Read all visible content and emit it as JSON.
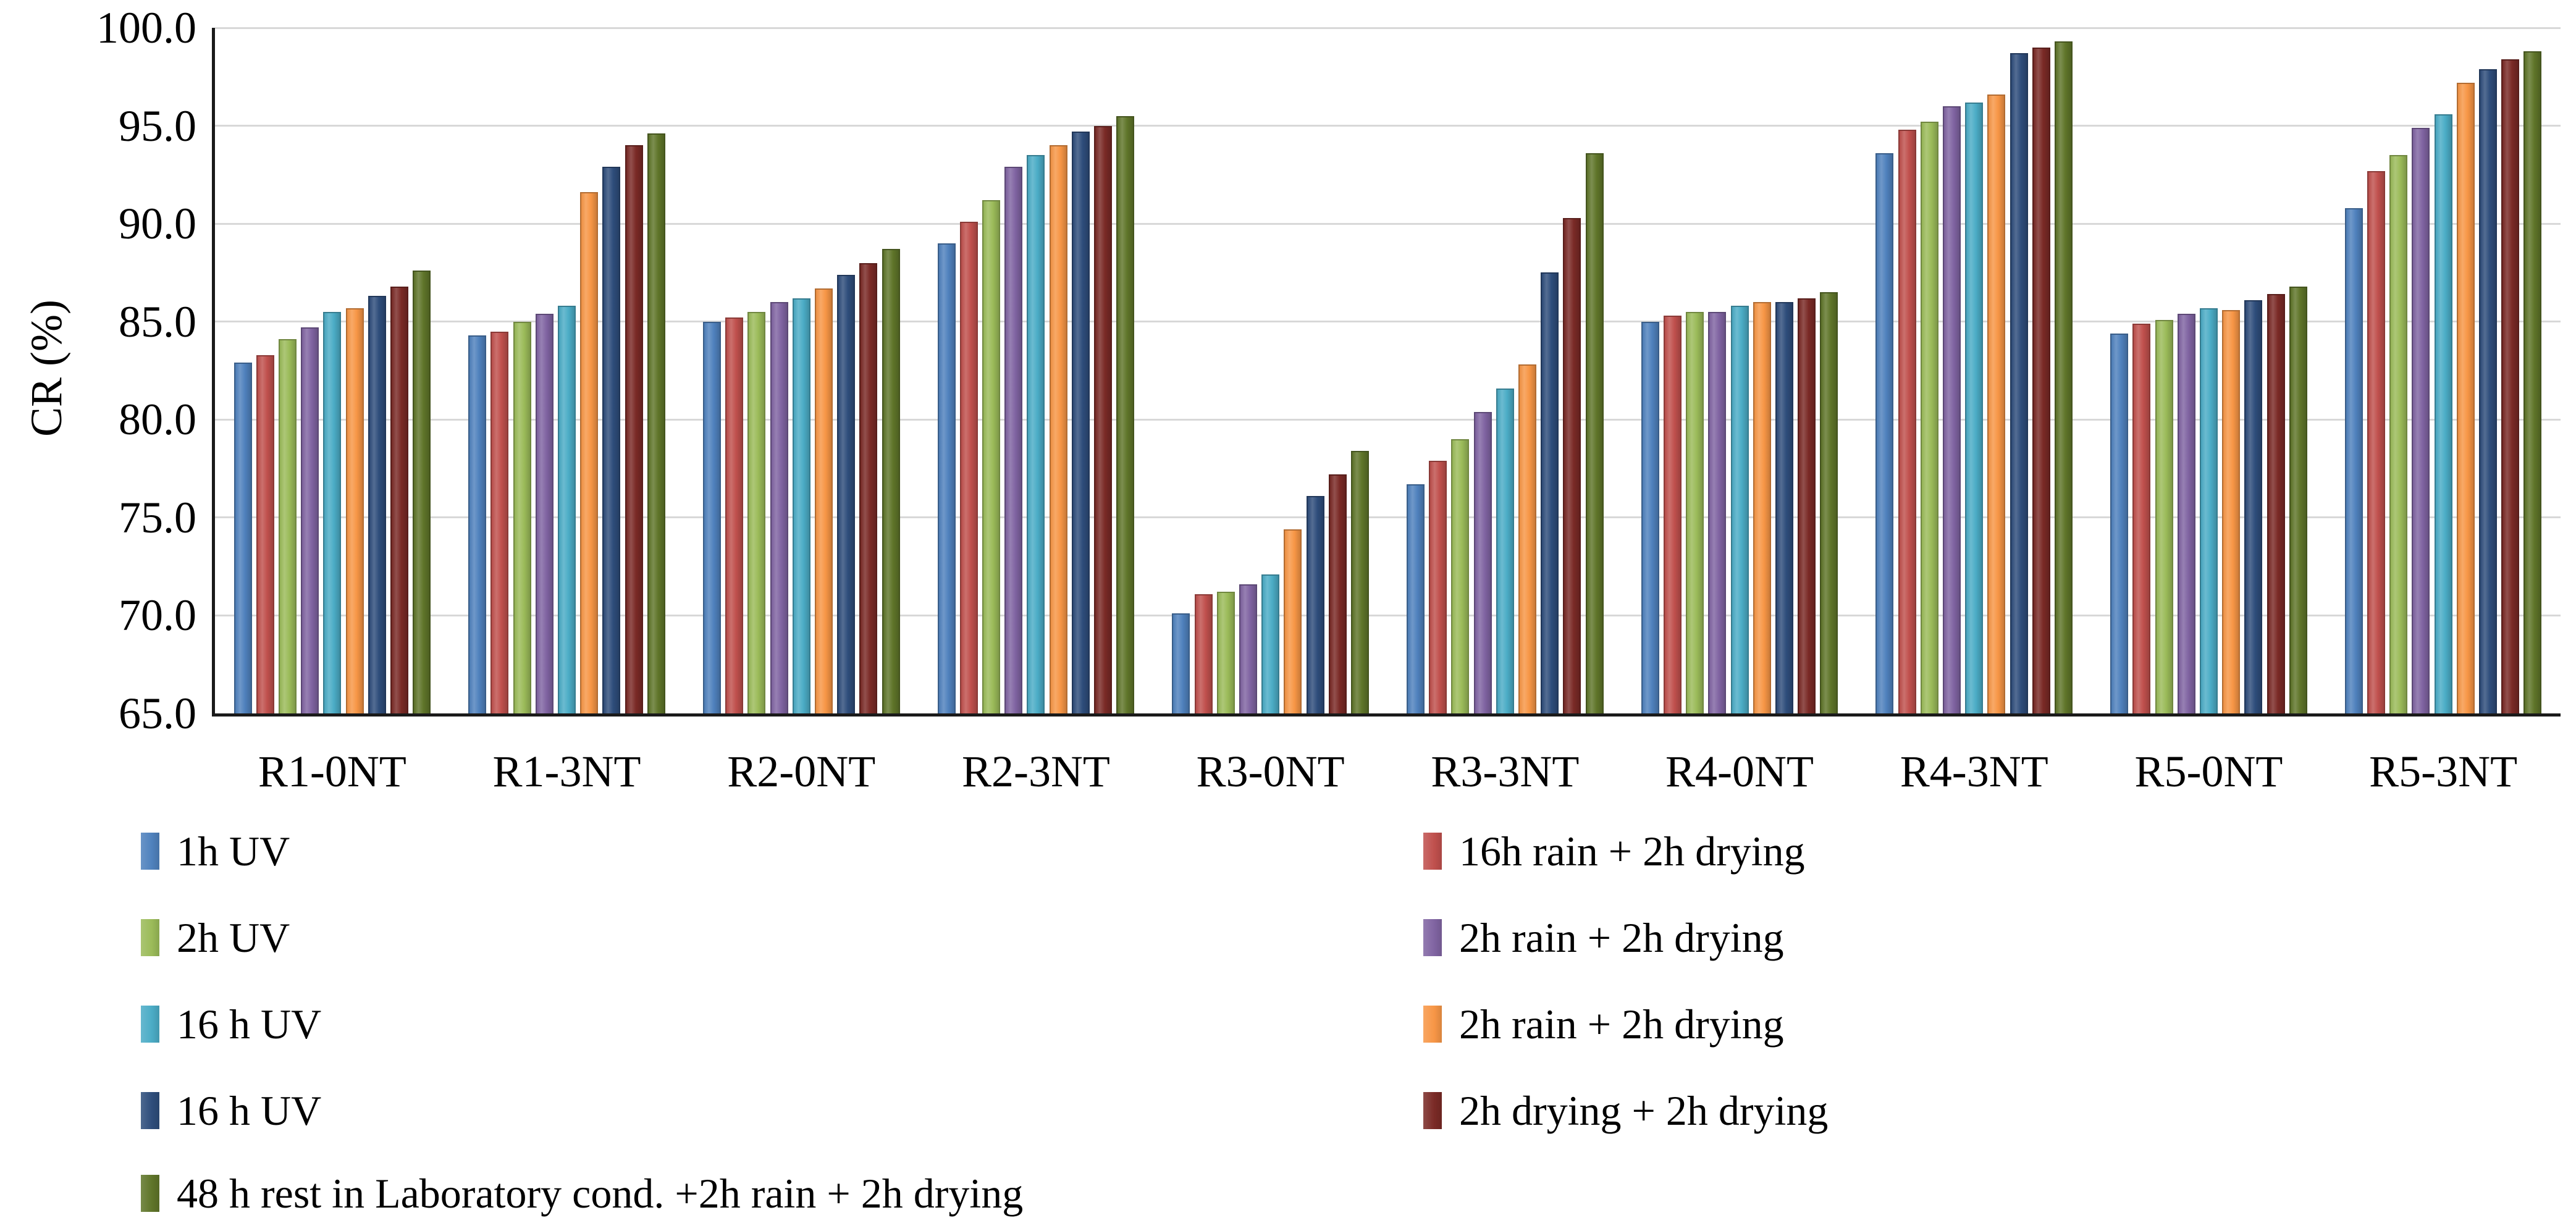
{
  "chart_data": {
    "type": "bar",
    "title": "",
    "xlabel": "",
    "ylabel": "CR (%)",
    "ylim": [
      65,
      100
    ],
    "ytick_step": 5,
    "grid": "horizontal-light-gray",
    "legend_position": "bottom-two-columns",
    "yticks": [
      "100.0",
      "95.0",
      "90.0",
      "85.0",
      "80.0",
      "75.0",
      "70.0",
      "65.0"
    ],
    "categories": [
      "R1-0NT",
      "R1-3NT",
      "R2-0NT",
      "R2-3NT",
      "R3-0NT",
      "R3-3NT",
      "R4-0NT",
      "R4-3NT",
      "R5-0NT",
      "R5-3NT"
    ],
    "series": [
      {
        "name": "1h UV",
        "color": "#4F81BD",
        "values": [
          82.9,
          84.3,
          85.0,
          89.0,
          70.1,
          76.7,
          85.0,
          93.6,
          84.4,
          90.8
        ]
      },
      {
        "name": "16h rain + 2h drying",
        "color": "#C0504D",
        "values": [
          83.3,
          84.5,
          85.2,
          90.1,
          71.1,
          77.9,
          85.3,
          94.8,
          84.9,
          92.7
        ]
      },
      {
        "name": "2h UV",
        "color": "#9BBB59",
        "values": [
          84.1,
          85.0,
          85.5,
          91.2,
          71.2,
          79.0,
          85.5,
          95.2,
          85.1,
          93.5
        ]
      },
      {
        "name": "2h rain + 2h drying",
        "color": "#8064A2",
        "values": [
          84.7,
          85.4,
          86.0,
          92.9,
          71.6,
          80.4,
          85.5,
          96.0,
          85.4,
          94.9
        ]
      },
      {
        "name": "16 h UV",
        "color": "#4BACC6",
        "values": [
          85.5,
          85.8,
          86.2,
          93.5,
          72.1,
          81.6,
          85.8,
          96.2,
          85.7,
          95.6
        ]
      },
      {
        "name": "2h rain + 2h drying",
        "color": "#F79646",
        "values": [
          85.7,
          91.6,
          86.7,
          94.0,
          74.4,
          82.8,
          86.0,
          96.6,
          85.6,
          97.2
        ]
      },
      {
        "name": "16 h UV",
        "color": "#2E4D7B",
        "values": [
          86.3,
          92.9,
          87.4,
          94.7,
          76.1,
          87.5,
          86.0,
          98.7,
          86.1,
          97.9
        ]
      },
      {
        "name": "2h drying + 2h drying",
        "color": "#7A2A26",
        "values": [
          86.8,
          94.0,
          88.0,
          95.0,
          77.2,
          90.3,
          86.2,
          99.0,
          86.4,
          98.4
        ]
      },
      {
        "name": "48 h rest in Laboratory cond. +2h rain + 2h drying",
        "color": "#5F7529",
        "values": [
          87.6,
          94.6,
          88.7,
          95.5,
          78.4,
          93.6,
          86.5,
          99.3,
          86.8,
          98.8
        ]
      }
    ],
    "legend": {
      "left_column_series": [
        0,
        2,
        4,
        6,
        8
      ],
      "right_column_series": [
        1,
        3,
        5,
        7
      ]
    }
  }
}
